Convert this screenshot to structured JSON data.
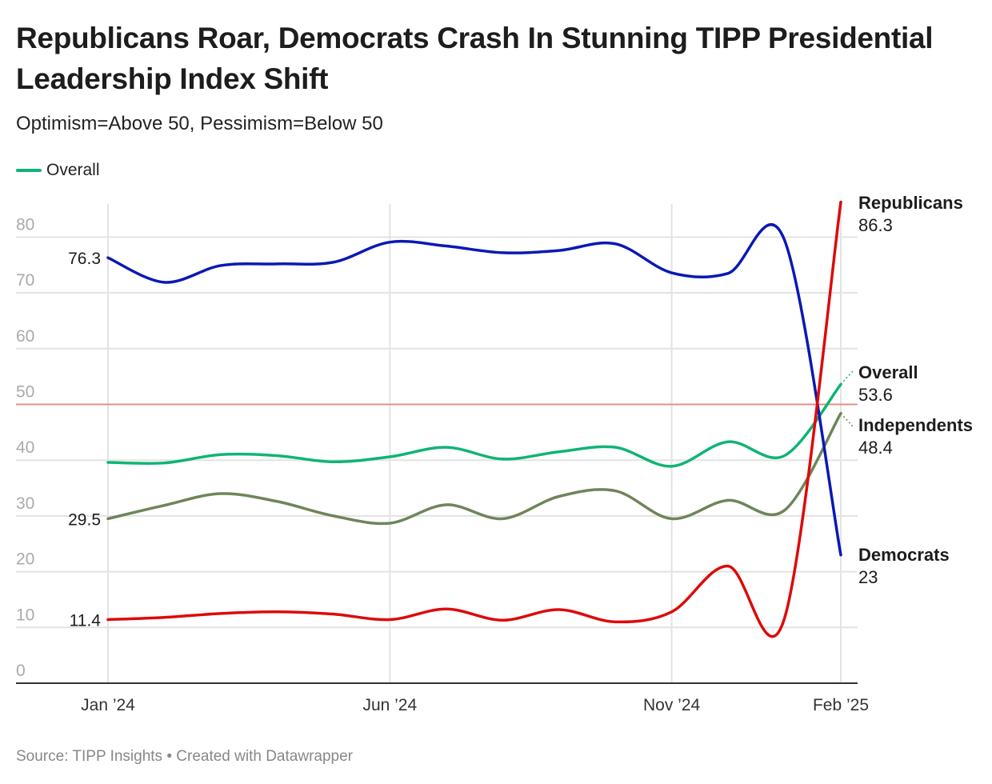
{
  "title": "Republicans Roar, Democrats Crash In Stunning TIPP Presidential Leadership Index Shift",
  "subtitle": "Optimism=Above 50, Pessimism=Below 50",
  "legend": [
    {
      "label": "Overall",
      "color": "#10b475"
    }
  ],
  "source": "Source: TIPP Insights • Created with Datawrapper",
  "chart_data": {
    "type": "line",
    "x": [
      "2024-01",
      "2024-02",
      "2024-03",
      "2024-04",
      "2024-05",
      "2024-06",
      "2024-07",
      "2024-08",
      "2024-09",
      "2024-10",
      "2024-11",
      "2024-12",
      "2025-01",
      "2025-02"
    ],
    "x_tick_labels": [
      {
        "x": "2024-01",
        "label": "Jan ’24"
      },
      {
        "x": "2024-06",
        "label": "Jun ’24"
      },
      {
        "x": "2024-11",
        "label": "Nov ’24"
      },
      {
        "x": "2025-02",
        "label": "Feb ’25"
      }
    ],
    "ylim": [
      0,
      86.3
    ],
    "y_ticks": [
      0,
      10,
      20,
      30,
      40,
      50,
      60,
      70,
      80
    ],
    "reference_line": {
      "y": 50,
      "color": "#e0908a"
    },
    "grid": true,
    "series": [
      {
        "name": "Democrats",
        "color": "#0a19b4",
        "values": [
          76.3,
          71.9,
          74.9,
          75.2,
          75.5,
          79.1,
          78.4,
          77.2,
          77.6,
          78.8,
          73.6,
          73.5,
          79.5,
          23
        ],
        "start_label": "76.3",
        "end_label": "23"
      },
      {
        "name": "Overall",
        "color": "#10b475",
        "values": [
          39.6,
          39.5,
          41,
          40.8,
          39.7,
          40.6,
          42.3,
          40.2,
          41.5,
          42.3,
          38.9,
          43.3,
          40.8,
          53.6
        ],
        "end_label": "53.6"
      },
      {
        "name": "Independents",
        "color": "#6e8559",
        "values": [
          29.5,
          31.9,
          34,
          32.6,
          30,
          28.7,
          32,
          29.5,
          33.5,
          34.5,
          29.5,
          32.8,
          31,
          48.4
        ],
        "start_label": "29.5",
        "end_label": "48.4"
      },
      {
        "name": "Republicans",
        "color": "#dd0a0a",
        "values": [
          11.4,
          11.8,
          12.5,
          12.8,
          12.4,
          11.4,
          13.3,
          11.3,
          13.2,
          11,
          12.8,
          21,
          11.6,
          86.3
        ],
        "start_label": "11.4",
        "end_label": "86.3"
      }
    ]
  }
}
